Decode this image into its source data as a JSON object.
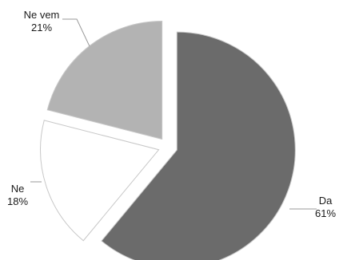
{
  "chart_data": {
    "type": "pie",
    "title": "",
    "slices": [
      {
        "label": "Da",
        "value": 61,
        "value_label": "61%",
        "color": "#6b6b6b"
      },
      {
        "label": "Ne",
        "value": 18,
        "value_label": "18%",
        "color": "#ffffff"
      },
      {
        "label": "Ne vem",
        "value": 21,
        "value_label": "21%",
        "color": "#b3b3b3"
      }
    ],
    "exploded": true,
    "slice_outline": "#c8c8c8",
    "leader_line_color": "#9a9a9a",
    "legend": "none"
  }
}
